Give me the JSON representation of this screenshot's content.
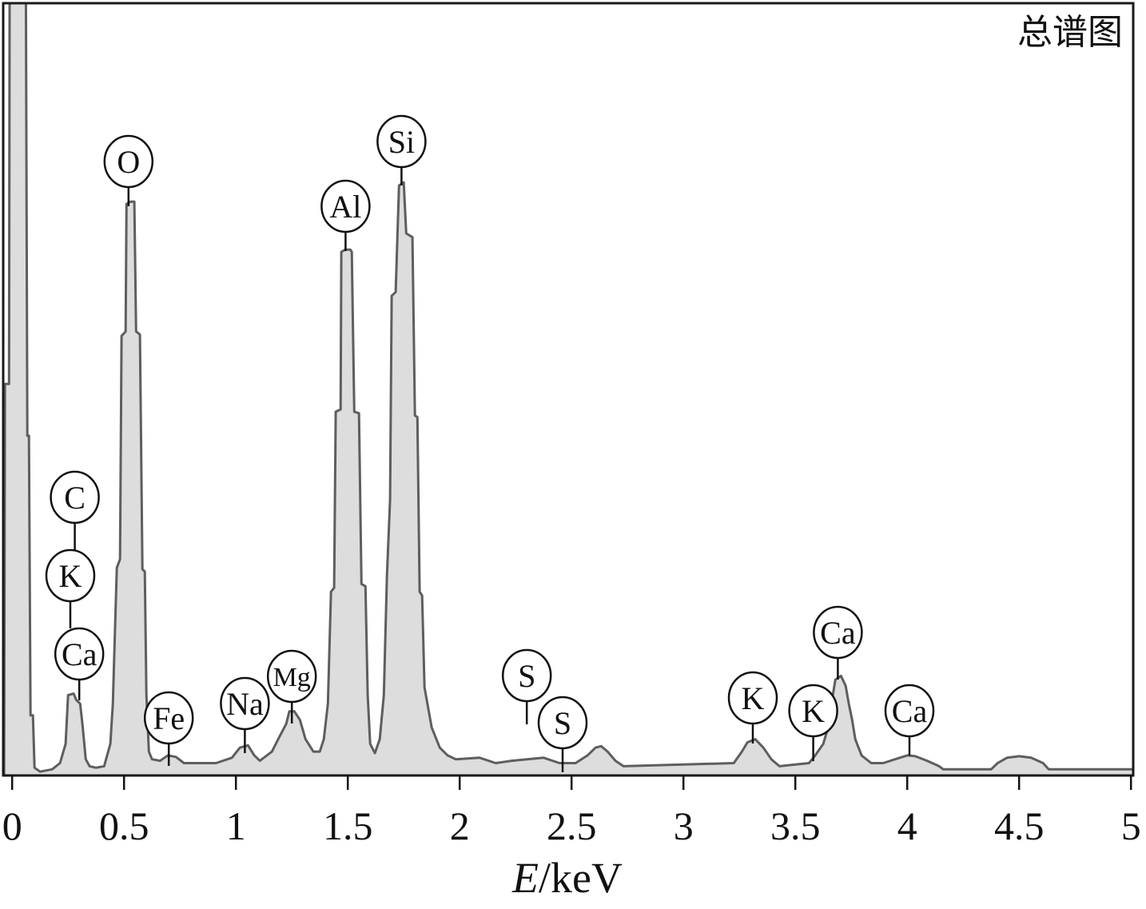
{
  "chart_data": {
    "type": "area",
    "title": "总谱图",
    "xlabel": {
      "symbol": "E",
      "unit": "/keV"
    },
    "xlim": [
      -0.04,
      5.01
    ],
    "ylim": [
      0,
      100
    ],
    "xticks": [
      0,
      0.5,
      1,
      1.5,
      2,
      2.5,
      3,
      3.5,
      4,
      4.5,
      5
    ],
    "xtick_labels": [
      "0",
      "0.5",
      "1",
      "1.5",
      "2",
      "2.5",
      "3",
      "3.5",
      "4",
      "4.5",
      "5"
    ],
    "grid": false,
    "legend": "none",
    "series": [
      {
        "x": [
          -0.036,
          -0.032,
          -0.014,
          -0.011,
          0.061,
          0.068,
          0.075,
          0.082,
          0.093,
          0.1,
          0.125,
          0.179,
          0.214,
          0.239,
          0.25,
          0.275,
          0.286,
          0.304,
          0.314,
          0.329,
          0.346,
          0.375,
          0.411,
          0.439,
          0.45,
          0.468,
          0.482,
          0.489,
          0.507,
          0.511,
          0.529,
          0.546,
          0.554,
          0.571,
          0.582,
          0.593,
          0.6,
          0.611,
          0.625,
          0.661,
          0.696,
          0.732,
          0.768,
          0.911,
          0.982,
          1.018,
          1.054,
          1.082,
          1.107,
          1.161,
          1.189,
          1.225,
          1.239,
          1.261,
          1.286,
          1.311,
          1.346,
          1.375,
          1.393,
          1.411,
          1.425,
          1.439,
          1.446,
          1.468,
          1.471,
          1.489,
          1.511,
          1.518,
          1.529,
          1.55,
          1.561,
          1.579,
          1.589,
          1.6,
          1.621,
          1.643,
          1.661,
          1.675,
          1.689,
          1.696,
          1.714,
          1.729,
          1.75,
          1.761,
          1.789,
          1.8,
          1.811,
          1.821,
          1.832,
          1.843,
          1.875,
          1.911,
          1.946,
          1.982,
          2.089,
          2.161,
          2.232,
          2.375,
          2.446,
          2.518,
          2.571,
          2.607,
          2.632,
          2.661,
          2.696,
          2.732,
          3.225,
          3.261,
          3.286,
          3.321,
          3.357,
          3.393,
          3.429,
          3.561,
          3.589,
          3.625,
          3.646,
          3.661,
          3.679,
          3.704,
          3.725,
          3.739,
          3.754,
          3.768,
          3.796,
          3.839,
          3.893,
          3.946,
          4.0,
          4.036,
          4.089,
          4.143,
          4.161,
          4.375,
          4.404,
          4.446,
          4.5,
          4.554,
          4.607,
          4.632,
          5.011
        ],
        "y": [
          0,
          50.7,
          50.7,
          105,
          105,
          44.0,
          44.0,
          7.8,
          7.8,
          1.0,
          0.5,
          0.8,
          1.6,
          4.1,
          10.4,
          10.6,
          9.8,
          9.3,
          6.7,
          2.1,
          1.2,
          1.0,
          1.2,
          4.1,
          9.3,
          26.9,
          28.0,
          56.9,
          57.5,
          74.0,
          74.3,
          74.3,
          57.5,
          57.1,
          26.7,
          26.4,
          10.4,
          3.1,
          2.1,
          1.9,
          2.6,
          2.4,
          1.6,
          1.6,
          2.3,
          3.6,
          3.9,
          2.6,
          1.9,
          3.1,
          4.7,
          6.7,
          8.3,
          8.3,
          7.2,
          4.7,
          3.1,
          3.1,
          4.7,
          9.3,
          23.8,
          24.3,
          47.1,
          47.4,
          67.8,
          68.1,
          68.1,
          67.8,
          47.1,
          46.9,
          24.8,
          24.5,
          10.4,
          4.1,
          2.9,
          4.7,
          10.4,
          25.9,
          35.7,
          62.1,
          62.6,
          76.4,
          76.8,
          70.2,
          69.7,
          46.6,
          46.4,
          23.8,
          23.3,
          11.4,
          6.2,
          3.6,
          2.6,
          2.1,
          2.3,
          1.6,
          1.9,
          2.3,
          1.6,
          1.6,
          2.6,
          3.6,
          3.8,
          3.1,
          1.9,
          1.2,
          1.6,
          3.1,
          4.3,
          4.7,
          3.6,
          2.1,
          1.2,
          1.6,
          2.6,
          4.1,
          6.2,
          9.3,
          12.4,
          12.9,
          11.6,
          9.3,
          7.2,
          4.7,
          2.6,
          1.6,
          1.6,
          2.1,
          2.6,
          2.5,
          1.9,
          1.2,
          0.8,
          0.8,
          1.6,
          2.3,
          2.5,
          2.3,
          1.6,
          0.8,
          0.8
        ]
      }
    ],
    "annotations": [
      {
        "label": "O",
        "energy": 0.52
      },
      {
        "label": "C",
        "energy": 0.28
      },
      {
        "label": "K",
        "energy": 0.26
      },
      {
        "label": "Ca",
        "energy": 0.3
      },
      {
        "label": "Fe",
        "energy": 0.7
      },
      {
        "label": "Na",
        "energy": 1.04
      },
      {
        "label": "Mg",
        "energy": 1.25
      },
      {
        "label": "Al",
        "energy": 1.49
      },
      {
        "label": "Si",
        "energy": 1.74
      },
      {
        "label": "S",
        "energy": 2.3
      },
      {
        "label": "S",
        "energy": 2.46
      },
      {
        "label": "K",
        "energy": 3.31
      },
      {
        "label": "K",
        "energy": 3.58
      },
      {
        "label": "Ca",
        "energy": 3.69
      },
      {
        "label": "Ca",
        "energy": 4.01
      }
    ],
    "colors": {
      "fill": "#dddddd",
      "line": "#5e5e5e",
      "frame": "#1a1a1a"
    }
  }
}
